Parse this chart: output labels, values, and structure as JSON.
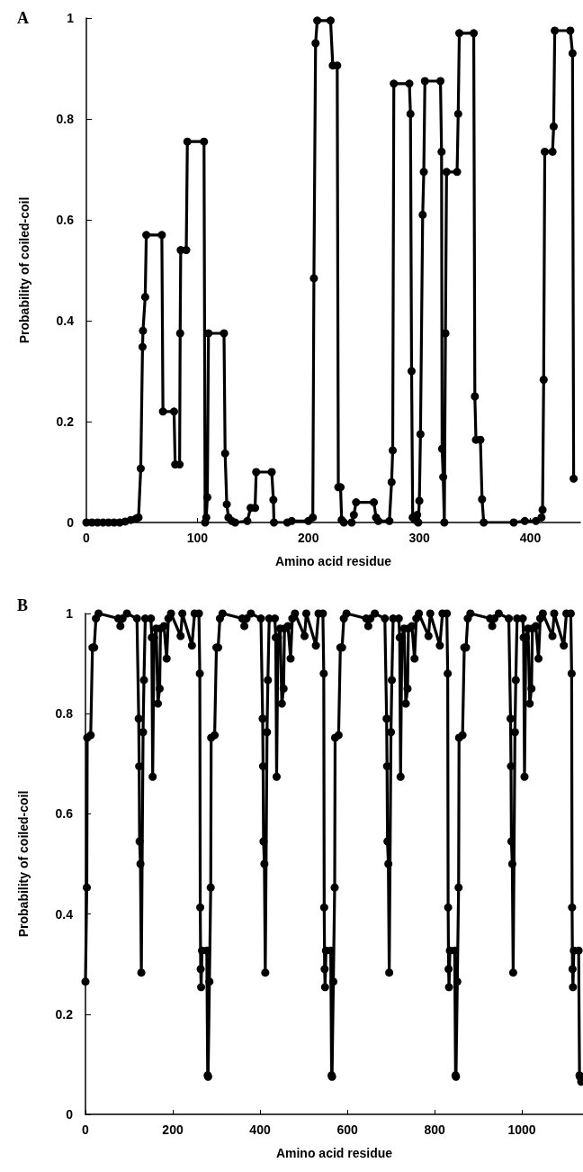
{
  "chart_data": [
    {
      "type": "line",
      "title": "A",
      "xlabel": "Amino acid residue",
      "ylabel": "Probability of coiled-coil",
      "marker": "circle",
      "line_style": "solid",
      "xlim": [
        0,
        445
      ],
      "xticks": [
        0,
        100,
        200,
        300,
        400
      ],
      "ylim": [
        0,
        1
      ],
      "yticks": [
        0,
        0.2,
        0.4,
        0.6,
        0.8,
        1
      ],
      "series": [
        {
          "color": "#000000",
          "x": [
            0,
            5,
            10,
            15,
            20,
            25,
            30,
            35,
            40,
            45,
            47,
            49,
            50.6,
            51,
            53,
            54,
            68,
            69,
            79,
            80,
            84,
            84.5,
            85,
            90,
            91,
            106,
            107,
            108,
            109,
            110,
            124,
            125,
            126.5,
            128,
            131,
            134,
            145,
            148,
            152,
            153,
            167,
            168.5,
            169,
            181,
            185,
            200,
            204,
            205,
            206.5,
            208,
            220,
            222,
            226,
            227,
            229,
            230,
            232,
            239,
            241,
            243,
            259,
            261,
            263,
            273,
            275,
            276,
            277,
            291,
            292,
            293,
            294,
            296,
            298,
            299,
            300,
            301,
            303,
            304,
            305,
            319,
            320,
            320.5,
            321.5,
            322.5,
            323.5,
            324.5,
            334,
            335,
            336,
            349,
            350,
            351,
            355,
            356.5,
            358,
            385,
            395,
            405,
            410,
            411,
            412,
            413,
            420,
            421,
            422,
            436,
            438,
            439
          ],
          "values": [
            0,
            0,
            0,
            0,
            0,
            0,
            0,
            0.002,
            0.005,
            0.008,
            0.01,
            0.107,
            0.348,
            0.38,
            0.447,
            0.57,
            0.57,
            0.22,
            0.22,
            0.115,
            0.115,
            0.375,
            0.54,
            0.54,
            0.755,
            0.755,
            0,
            0.01,
            0.05,
            0.375,
            0.375,
            0.137,
            0.036,
            0.01,
            0.003,
            0,
            0.003,
            0.029,
            0.029,
            0.1,
            0.1,
            0.045,
            0,
            0,
            0.003,
            0.003,
            0.01,
            0.484,
            0.95,
            0.995,
            0.995,
            0.906,
            0.906,
            0.07,
            0.07,
            0.005,
            0,
            0,
            0.015,
            0.04,
            0.04,
            0.01,
            0.003,
            0.003,
            0.08,
            0.143,
            0.87,
            0.87,
            0.81,
            0.3,
            0.01,
            0.005,
            0.015,
            0,
            0.043,
            0.175,
            0.61,
            0.695,
            0.875,
            0.875,
            0.735,
            0.146,
            0.09,
            0,
            0.375,
            0.695,
            0.695,
            0.81,
            0.97,
            0.97,
            0.25,
            0.164,
            0.164,
            0.046,
            0,
            0,
            0.003,
            0.003,
            0.01,
            0.025,
            0.283,
            0.735,
            0.735,
            0.785,
            0.975,
            0.975,
            0.93,
            0.087
          ]
        }
      ]
    },
    {
      "type": "line",
      "title": "B",
      "xlabel": "Amino acid residue",
      "ylabel": "Probability of coiled-coil",
      "marker": "circle",
      "line_style": "solid",
      "xlim": [
        0,
        1140
      ],
      "xticks": [
        0,
        200,
        400,
        600,
        800,
        1000
      ],
      "ylim": [
        0,
        1
      ],
      "yticks": [
        0,
        0.2,
        0.4,
        0.6,
        0.8,
        1
      ],
      "series": [
        {
          "color": "#000000",
          "x": [
            0,
            3,
            4,
            12,
            16,
            20,
            24,
            30,
            75,
            80,
            85,
            95,
            118,
            122,
            123,
            124,
            126,
            128,
            132,
            134,
            137,
            150,
            152,
            154,
            157,
            162,
            166,
            170,
            172,
            180,
            186,
            190,
            196,
            218,
            222,
            244,
            250,
            260,
            262,
            263,
            264,
            265,
            267,
            278,
            280,
            281,
            284,
            287,
            288,
            296,
            300,
            304,
            308,
            314,
            359,
            364,
            369,
            379,
            402,
            406,
            407,
            408,
            410,
            412,
            416,
            418,
            421,
            434,
            436,
            438,
            441,
            446,
            450,
            454,
            456,
            464,
            470,
            474,
            480,
            502,
            506,
            528,
            534,
            544,
            546,
            547,
            548,
            549,
            551,
            562,
            564,
            565,
            568,
            571,
            572,
            580,
            584,
            588,
            592,
            598,
            643,
            648,
            653,
            663,
            686,
            690,
            691,
            692,
            694,
            696,
            700,
            702,
            705,
            718,
            720,
            722,
            725,
            730,
            734,
            738,
            740,
            748,
            754,
            758,
            764,
            786,
            790,
            812,
            818,
            828,
            830,
            831,
            832,
            833,
            835,
            846,
            848,
            849,
            852,
            855,
            856,
            864,
            868,
            872,
            876,
            882,
            927,
            932,
            937,
            947,
            970,
            974,
            975,
            976,
            978,
            980,
            984,
            986,
            989,
            1002,
            1004,
            1006,
            1009,
            1014,
            1018,
            1022,
            1024,
            1032,
            1038,
            1042,
            1048,
            1070,
            1074,
            1096,
            1102,
            1112,
            1114,
            1115,
            1116,
            1117,
            1119,
            1130,
            1132,
            1133,
            1136
          ],
          "values": [
            0.265,
            0.453,
            0.752,
            0.757,
            0.932,
            0.932,
            0.99,
            1,
            0.99,
            0.975,
            0.99,
            1,
            0.99,
            0.79,
            0.695,
            0.545,
            0.5,
            0.283,
            0.763,
            0.867,
            0.99,
            0.99,
            0.952,
            0.674,
            0.952,
            0.97,
            0.82,
            0.85,
            0.97,
            0.975,
            0.91,
            0.99,
            1,
            0.955,
            1,
            0.936,
            1,
            1,
            0.88,
            0.413,
            0.29,
            0.254,
            0.327,
            0.327,
            0.078,
            0.075,
            0.265,
            0.453,
            0.752,
            0.757,
            0.932,
            0.932,
            0.99,
            1,
            0.99,
            0.975,
            0.99,
            1,
            0.99,
            0.79,
            0.695,
            0.545,
            0.5,
            0.283,
            0.763,
            0.867,
            0.99,
            0.99,
            0.952,
            0.674,
            0.952,
            0.97,
            0.82,
            0.85,
            0.97,
            0.975,
            0.91,
            0.99,
            1,
            0.955,
            1,
            0.936,
            1,
            1,
            0.88,
            0.413,
            0.29,
            0.254,
            0.327,
            0.327,
            0.078,
            0.075,
            0.265,
            0.453,
            0.752,
            0.757,
            0.932,
            0.932,
            0.99,
            1,
            0.99,
            0.975,
            0.99,
            1,
            0.99,
            0.79,
            0.695,
            0.545,
            0.5,
            0.283,
            0.763,
            0.867,
            0.99,
            0.99,
            0.952,
            0.674,
            0.952,
            0.97,
            0.82,
            0.85,
            0.97,
            0.975,
            0.91,
            0.99,
            1,
            0.955,
            1,
            0.936,
            1,
            1,
            0.88,
            0.413,
            0.29,
            0.254,
            0.327,
            0.327,
            0.078,
            0.075,
            0.265,
            0.453,
            0.752,
            0.757,
            0.932,
            0.932,
            0.99,
            1,
            0.99,
            0.975,
            0.99,
            1,
            0.99,
            0.79,
            0.695,
            0.545,
            0.5,
            0.283,
            0.763,
            0.867,
            0.99,
            0.99,
            0.952,
            0.674,
            0.952,
            0.97,
            0.82,
            0.85,
            0.97,
            0.975,
            0.91,
            0.99,
            1,
            0.955,
            1,
            0.936,
            1,
            1,
            0.88,
            0.413,
            0.29,
            0.254,
            0.327,
            0.327,
            0.078,
            0.075,
            0.065
          ]
        }
      ]
    }
  ]
}
